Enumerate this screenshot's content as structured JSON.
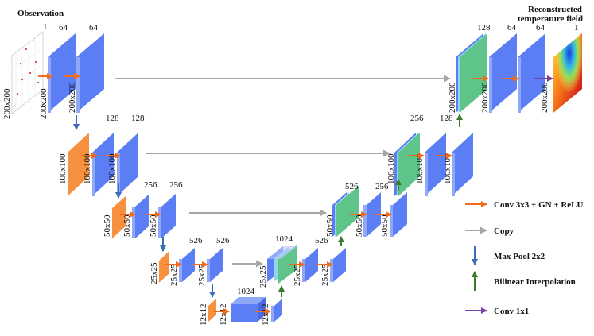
{
  "titles": {
    "input": "Observation",
    "output_line1": "Reconstructed",
    "output_line2": "temperature field"
  },
  "channels": {
    "c_in": "1",
    "c64": "64",
    "c128": "128",
    "c256": "256",
    "c526": "526",
    "c1024": "1024",
    "c_out": "1"
  },
  "sizes": {
    "s200": "200x200",
    "s100": "100x100",
    "s50": "50x50",
    "s25": "25x25",
    "s12": "12x12"
  },
  "legend": {
    "conv": "Conv 3x3 + GN + ReLU",
    "copy": "Copy",
    "pool": "Max Pool 2x2",
    "interp": "Bilinear Interpolation",
    "conv1": "Conv 1x1"
  },
  "colors": {
    "block_blue": "#5b7ef5",
    "block_blue_side": "#8fa8f8",
    "pool_orange": "#f7913f",
    "concat_green": "#5fc48a",
    "arrow_orange": "#f26b1d",
    "arrow_gray": "#a6a6a6",
    "arrow_blue": "#3d6bb8",
    "arrow_green": "#3c7a2e",
    "arrow_purple": "#7a3fa0"
  }
}
